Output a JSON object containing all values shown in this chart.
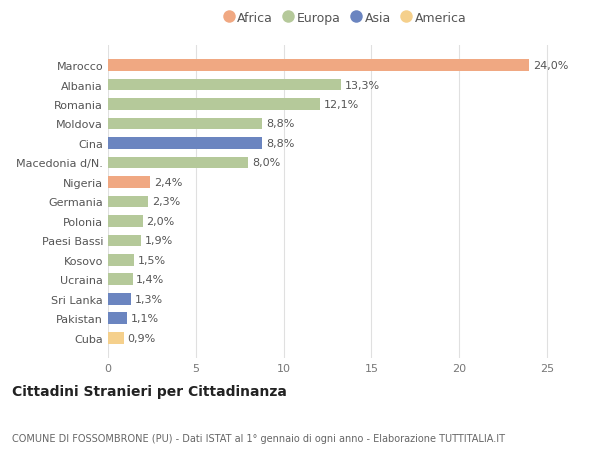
{
  "categories": [
    "Marocco",
    "Albania",
    "Romania",
    "Moldova",
    "Cina",
    "Macedonia d/N.",
    "Nigeria",
    "Germania",
    "Polonia",
    "Paesi Bassi",
    "Kosovo",
    "Ucraina",
    "Sri Lanka",
    "Pakistan",
    "Cuba"
  ],
  "values": [
    24.0,
    13.3,
    12.1,
    8.8,
    8.8,
    8.0,
    2.4,
    2.3,
    2.0,
    1.9,
    1.5,
    1.4,
    1.3,
    1.1,
    0.9
  ],
  "labels": [
    "24,0%",
    "13,3%",
    "12,1%",
    "8,8%",
    "8,8%",
    "8,0%",
    "2,4%",
    "2,3%",
    "2,0%",
    "1,9%",
    "1,5%",
    "1,4%",
    "1,3%",
    "1,1%",
    "0,9%"
  ],
  "continents": [
    "Africa",
    "Europa",
    "Europa",
    "Europa",
    "Asia",
    "Europa",
    "Africa",
    "Europa",
    "Europa",
    "Europa",
    "Europa",
    "Europa",
    "Asia",
    "Asia",
    "America"
  ],
  "continent_colors": {
    "Africa": "#F0A882",
    "Europa": "#B5C99A",
    "Asia": "#6B85C0",
    "America": "#F5D08C"
  },
  "legend_items": [
    "Africa",
    "Europa",
    "Asia",
    "America"
  ],
  "title": "Cittadini Stranieri per Cittadinanza",
  "subtitle": "COMUNE DI FOSSOMBRONE (PU) - Dati ISTAT al 1° gennaio di ogni anno - Elaborazione TUTTITALIA.IT",
  "xlim": [
    0,
    27
  ],
  "xticks": [
    0,
    5,
    10,
    15,
    20,
    25
  ],
  "background_color": "#ffffff",
  "grid_color": "#e0e0e0",
  "bar_height": 0.6,
  "label_fontsize": 8,
  "tick_fontsize": 8,
  "title_fontsize": 10,
  "subtitle_fontsize": 7
}
